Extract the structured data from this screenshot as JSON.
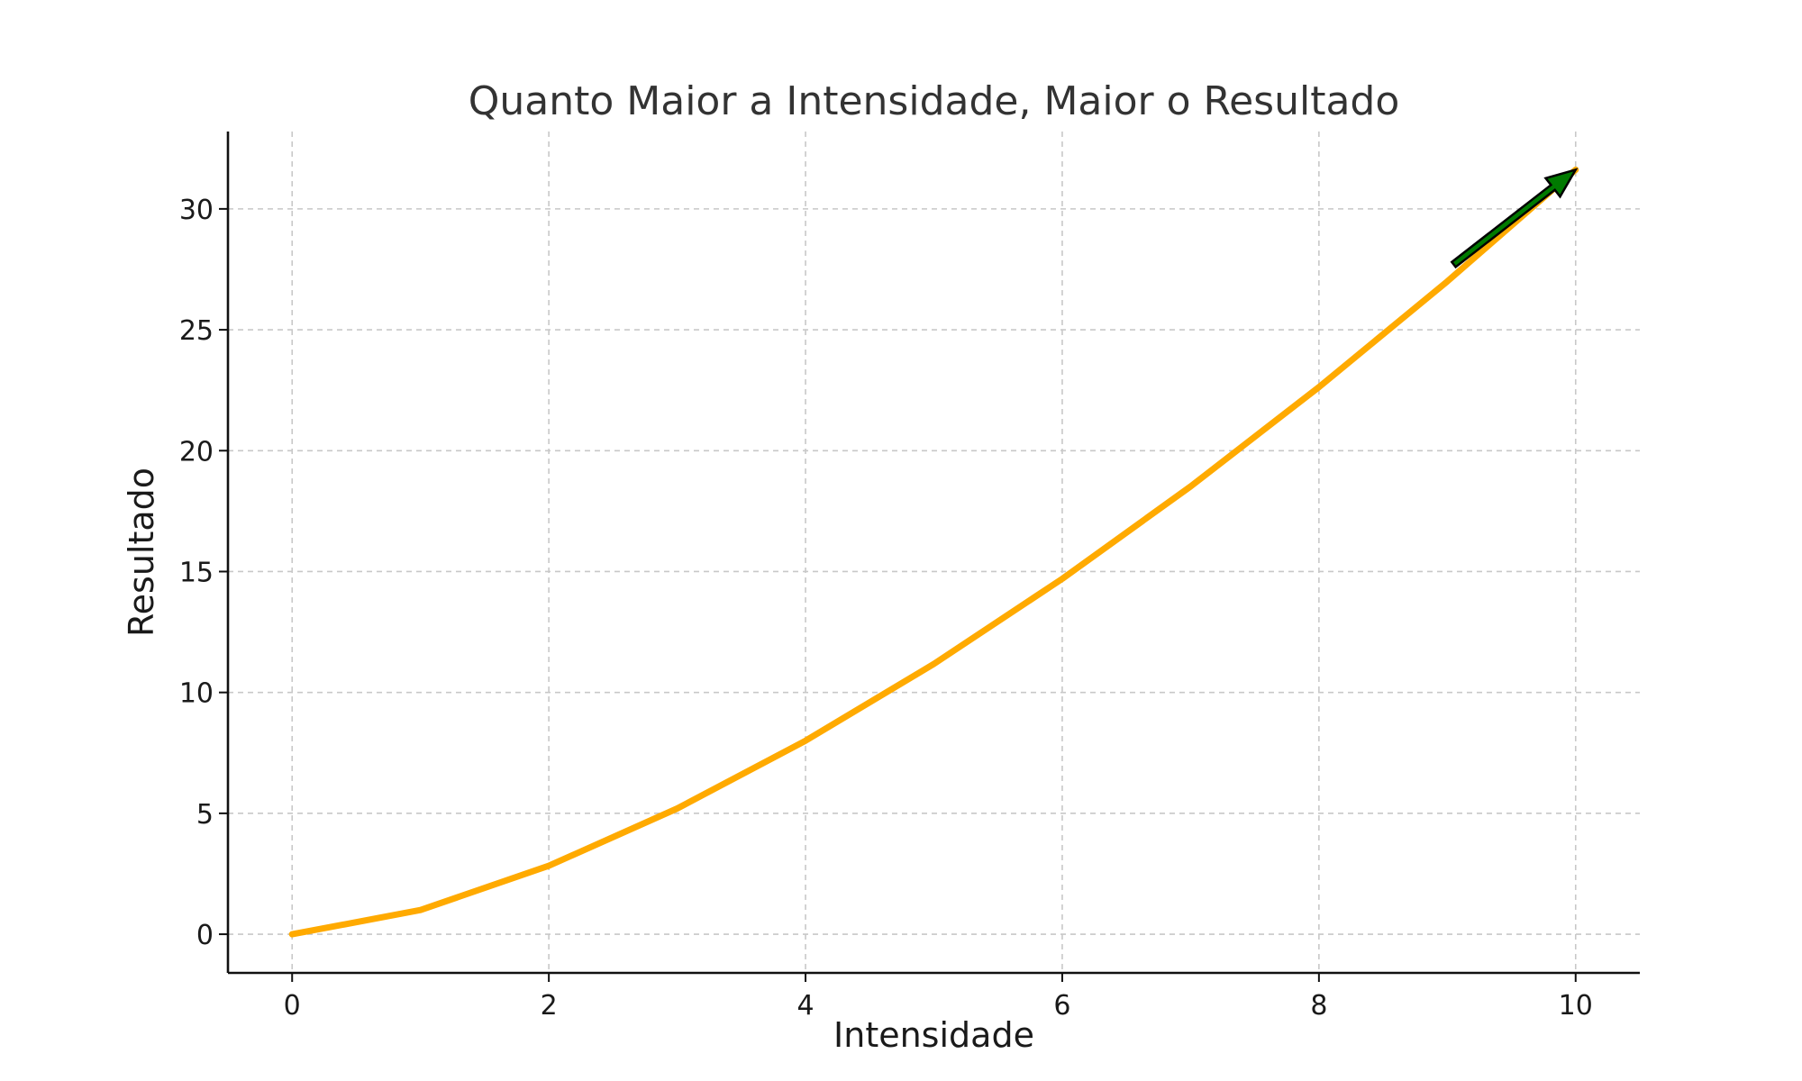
{
  "chart_data": {
    "type": "line",
    "title": "Quanto Maior a Intensidade, Maior o Resultado",
    "xlabel": "Intensidade",
    "ylabel": "Resultado",
    "xlim": [
      -0.5,
      10.5
    ],
    "ylim": [
      -1.6,
      33.2
    ],
    "x_ticks": [
      0,
      2,
      4,
      6,
      8,
      10
    ],
    "x_tick_labels": [
      "0",
      "2",
      "4",
      "6",
      "8",
      "10"
    ],
    "y_ticks": [
      0,
      5,
      10,
      15,
      20,
      25,
      30
    ],
    "y_tick_labels": [
      "0",
      "5",
      "10",
      "15",
      "20",
      "25",
      "30"
    ],
    "grid": true,
    "series": [
      {
        "color": "#FFAA00",
        "x": [
          0,
          1,
          2,
          3,
          4,
          5,
          6,
          7,
          8,
          9,
          10
        ],
        "y": [
          0,
          1.0,
          2.83,
          5.2,
          8.0,
          11.18,
          14.7,
          18.52,
          22.63,
          27.0,
          31.62
        ]
      }
    ],
    "annotations": [
      {
        "type": "arrow",
        "color": "#007A00",
        "from": [
          9.05,
          27.7
        ],
        "to": [
          10.0,
          31.62
        ]
      }
    ]
  }
}
